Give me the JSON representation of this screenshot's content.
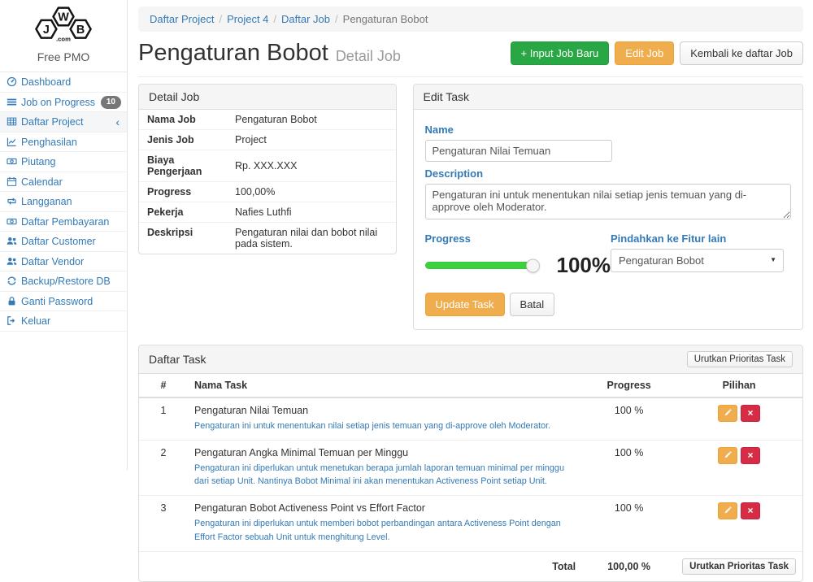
{
  "brand": {
    "logo_letters": "JWB",
    "logo_sub": ".com",
    "name": "Free PMO"
  },
  "sidebar": {
    "items": [
      {
        "label": "Dashboard",
        "icon": "dashboard-icon"
      },
      {
        "label": "Job on Progress",
        "icon": "list-icon",
        "badge": "10"
      },
      {
        "label": "Daftar Project",
        "icon": "table-icon",
        "chevron": "‹",
        "active": true
      },
      {
        "label": "Penghasilan",
        "icon": "chart-icon"
      },
      {
        "label": "Piutang",
        "icon": "money-icon"
      },
      {
        "label": "Calendar",
        "icon": "calendar-icon"
      },
      {
        "label": "Langganan",
        "icon": "repeat-icon"
      },
      {
        "label": "Daftar Pembayaran",
        "icon": "money-icon"
      },
      {
        "label": "Daftar Customer",
        "icon": "users-icon"
      },
      {
        "label": "Daftar Vendor",
        "icon": "users-icon"
      },
      {
        "label": "Backup/Restore DB",
        "icon": "refresh-icon"
      },
      {
        "label": "Ganti Password",
        "icon": "lock-icon"
      },
      {
        "label": "Keluar",
        "icon": "signout-icon"
      }
    ]
  },
  "breadcrumb": {
    "items": [
      {
        "label": "Daftar Project",
        "link": true
      },
      {
        "label": "Project 4",
        "link": true
      },
      {
        "label": "Daftar Job",
        "link": true
      },
      {
        "label": "Pengaturan Bobot",
        "link": false
      }
    ]
  },
  "header": {
    "title": "Pengaturan Bobot",
    "subtitle": "Detail Job",
    "input_job_button": "+ Input Job Baru",
    "edit_job_button": "Edit Job",
    "back_button": "Kembali ke daftar Job"
  },
  "detail_job": {
    "title": "Detail Job",
    "rows": [
      {
        "label": "Nama Job",
        "value": "Pengaturan Bobot"
      },
      {
        "label": "Jenis Job",
        "value": "Project"
      },
      {
        "label": "Biaya Pengerjaan",
        "value": "Rp. XXX.XXX"
      },
      {
        "label": "Progress",
        "value": "100,00%"
      },
      {
        "label": "Pekerja",
        "value": "Nafies Luthfi"
      },
      {
        "label": "Deskripsi",
        "value": "Pengaturan nilai dan bobot nilai pada sistem."
      }
    ]
  },
  "edit_task": {
    "title": "Edit Task",
    "name_label": "Name",
    "name_value": "Pengaturan Nilai Temuan",
    "description_label": "Description",
    "description_value": "Pengaturan ini untuk menentukan nilai setiap jenis temuan yang di-approve oleh Moderator.",
    "progress_label": "Progress",
    "progress_percent": 100,
    "progress_text": "100%",
    "move_label": "Pindahkan ke Fitur lain",
    "move_value": "Pengaturan Bobot",
    "update_button": "Update Task",
    "cancel_button": "Batal"
  },
  "task_table": {
    "title": "Daftar Task",
    "sort_button_top": "Urutkan Prioritas Task",
    "sort_button_bottom": "Urutkan Prioritas Task",
    "columns": [
      "#",
      "Nama Task",
      "Progress",
      "Pilihan"
    ],
    "rows": [
      {
        "num": "1",
        "name": "Pengaturan Nilai Temuan",
        "description": "Pengaturan ini untuk menentukan nilai setiap jenis temuan yang di-approve oleh Moderator.",
        "progress": "100 %"
      },
      {
        "num": "2",
        "name": "Pengaturan Angka Minimal Temuan per Minggu",
        "description": "Pengaturan ini diperlukan untuk menetukan berapa jumlah laporan temuan minimal per minggu dari setiap Unit. Nantinya Bobot Minimal ini akan menentukan Activeness Point setiap Unit.",
        "progress": "100 %"
      },
      {
        "num": "3",
        "name": "Pengaturan Bobot Activeness Point vs Effort Factor",
        "description": "Pengaturan ini diperlukan untuk memberi bobot perbandingan antara Activeness Point dengan Effort Factor sebuah Unit untuk menghitung Level.",
        "progress": "100 %"
      }
    ],
    "total_label": "Total",
    "total_value": "100,00 %"
  },
  "colors": {
    "link_blue": "#337ab7",
    "button_green": "#2aa745",
    "button_orange": "#f0ad4e",
    "button_red": "#d62c46",
    "slider_green": "#3ed13e"
  }
}
